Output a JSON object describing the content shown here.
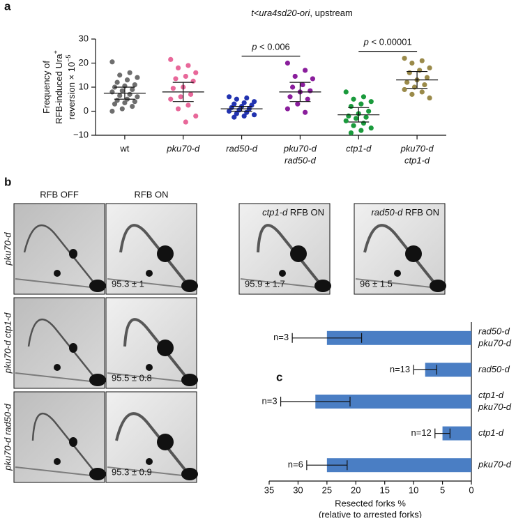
{
  "panels": {
    "a": "a",
    "b": "b",
    "c": "c"
  },
  "chart_data": [
    {
      "type": "dot",
      "title": {
        "italic": "t<ura4sd20-ori",
        "text": ", upstream"
      },
      "ylabel": [
        {
          "text": "Frequency of"
        },
        {
          "text": "RFB-induced Ura",
          "sup": "+"
        },
        {
          "text": "reversion × 10",
          "sup": "−5"
        }
      ],
      "categories": [
        [
          "wt"
        ],
        [
          "pku70-d"
        ],
        [
          "rad50-d"
        ],
        [
          "pku70-d",
          "rad50-d"
        ],
        [
          "ctp1-d"
        ],
        [
          "pku70-d",
          "ctp1-d"
        ]
      ],
      "groups": [
        {
          "color": "#6e6e6e",
          "values": [
            20.5,
            16,
            15,
            14,
            13,
            12,
            11,
            10.5,
            10,
            9,
            8.5,
            8,
            7,
            6.5,
            6,
            5,
            4.5,
            4,
            3.5,
            3,
            2,
            1,
            0
          ],
          "mean": 7.5,
          "error": 2.5
        },
        {
          "color": "#e8689a",
          "values": [
            21.5,
            19,
            18,
            16,
            14.5,
            13.5,
            12.5,
            10,
            9.5,
            7,
            6,
            5,
            2.5,
            1,
            -2,
            -4.5
          ],
          "mean": 8,
          "error": 4
        },
        {
          "color": "#2233b0",
          "values": [
            6,
            5.5,
            5,
            4,
            3.5,
            3,
            2.5,
            2,
            1.5,
            1,
            0.5,
            0,
            -0.5,
            -1,
            -1.5,
            -2,
            -2.5
          ],
          "mean": 1,
          "error": 1
        },
        {
          "color": "#8a1e9c",
          "values": [
            20,
            17,
            14.5,
            13.5,
            11,
            10,
            8.5,
            8,
            6,
            5,
            3,
            1,
            -0.5
          ],
          "mean": 8,
          "error": 4
        },
        {
          "color": "#1a9a3c",
          "values": [
            8,
            6,
            5,
            4,
            3,
            2,
            0,
            -1,
            -2,
            -2.5,
            -3,
            -4,
            -5,
            -6,
            -7,
            -8,
            -9
          ],
          "mean": -1.5,
          "error": 3
        },
        {
          "color": "#9a8a4a",
          "values": [
            22,
            21,
            20,
            18,
            17,
            16,
            14,
            13,
            12,
            11,
            10,
            9,
            8,
            7,
            5.5
          ],
          "mean": 13,
          "error": 3.5
        }
      ],
      "ylim": [
        -10,
        30
      ],
      "yticks": [
        {
          "value": -10,
          "label": "−10"
        },
        0,
        10,
        20,
        30
      ],
      "annotations": [
        {
          "var": "p",
          "text": " < 0.006",
          "between": [
            2,
            3
          ]
        },
        {
          "var": "p",
          "text": " < 0.00001",
          "between": [
            4,
            5
          ]
        }
      ]
    },
    {
      "type": "barh",
      "categories": [
        [
          "rad50-d",
          "pku70-d"
        ],
        [
          "rad50-d"
        ],
        [
          "ctp1-d",
          "pku70-d"
        ],
        [
          "ctp1-d"
        ],
        [
          "pku70-d"
        ]
      ],
      "values": [
        25,
        8,
        27,
        5,
        25
      ],
      "errors": [
        6,
        2,
        6,
        1.3,
        3.5
      ],
      "n_labels": [
        "n=3",
        "n=13",
        "n=3",
        "n=12",
        "n=6"
      ],
      "color": "#4a7ec4",
      "xlabel": [
        "Resected forks %",
        "(relative to arrested forks)"
      ],
      "xlim": [
        35,
        0
      ],
      "xticks": [
        35,
        30,
        25,
        20,
        15,
        10,
        5,
        0
      ]
    }
  ],
  "blots": {
    "column_headers": [
      "RFB OFF",
      "RFB ON"
    ],
    "row_labels": [
      "pku70-d",
      "pku70-d ctp1-d",
      "pku70-d rad50-d"
    ],
    "on_values": [
      "95.3 ± 1",
      "95.5 ± 0.8",
      "95.3 ± 0.9"
    ],
    "extra": [
      {
        "strain": "ctp1-d",
        "label": " RFB ON",
        "value": "95.9 ± 1.7"
      },
      {
        "strain": "rad50-d",
        "label": " RFB ON",
        "value": "96 ± 1.5"
      }
    ]
  }
}
